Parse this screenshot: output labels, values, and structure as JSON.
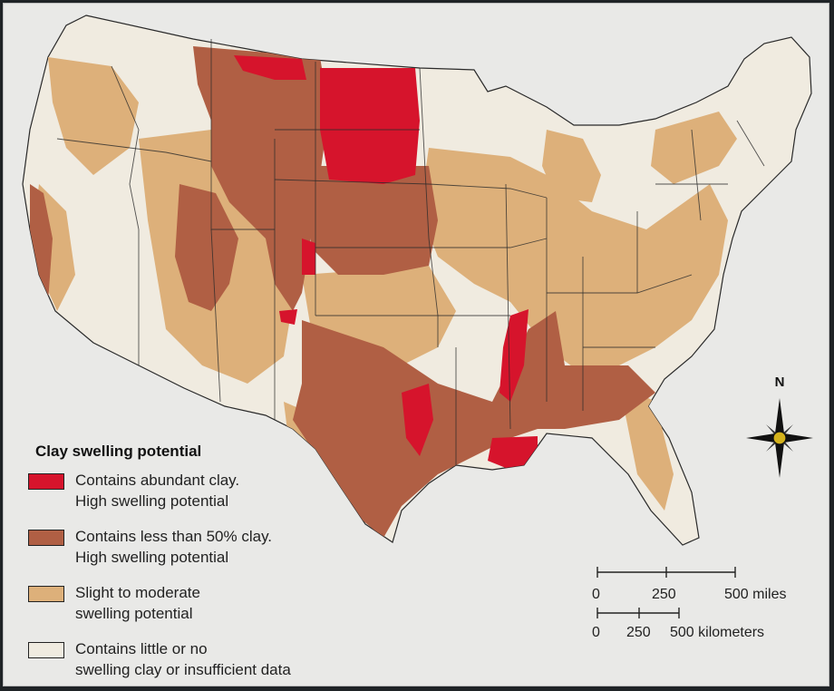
{
  "legend": {
    "title": "Clay swelling potential",
    "items": [
      {
        "line1": "Contains abundant clay.",
        "line2": "High swelling potential",
        "color": "#d6142c"
      },
      {
        "line1": "Contains less than 50% clay.",
        "line2": "High swelling potential",
        "color": "#b05f44"
      },
      {
        "line1": "Slight to moderate",
        "line2": "swelling potential",
        "color": "#ddb07a"
      },
      {
        "line1": "Contains little or no",
        "line2": "swelling clay or insufficient data",
        "color": "#f0ebe0"
      }
    ]
  },
  "north_arrow": {
    "label": "N",
    "icon": "compass-rose-icon",
    "color": "#d4b21c"
  },
  "scale": {
    "miles": {
      "ticks": [
        "0",
        "250",
        "500 miles"
      ]
    },
    "kilometers": {
      "ticks": [
        "0",
        "250",
        "500 kilometers"
      ]
    }
  },
  "map": {
    "region": "Contiguous United States",
    "colors": {
      "background": "#e9e9e7",
      "land": "#f0ebe0",
      "border": "#2a2a2a"
    }
  }
}
